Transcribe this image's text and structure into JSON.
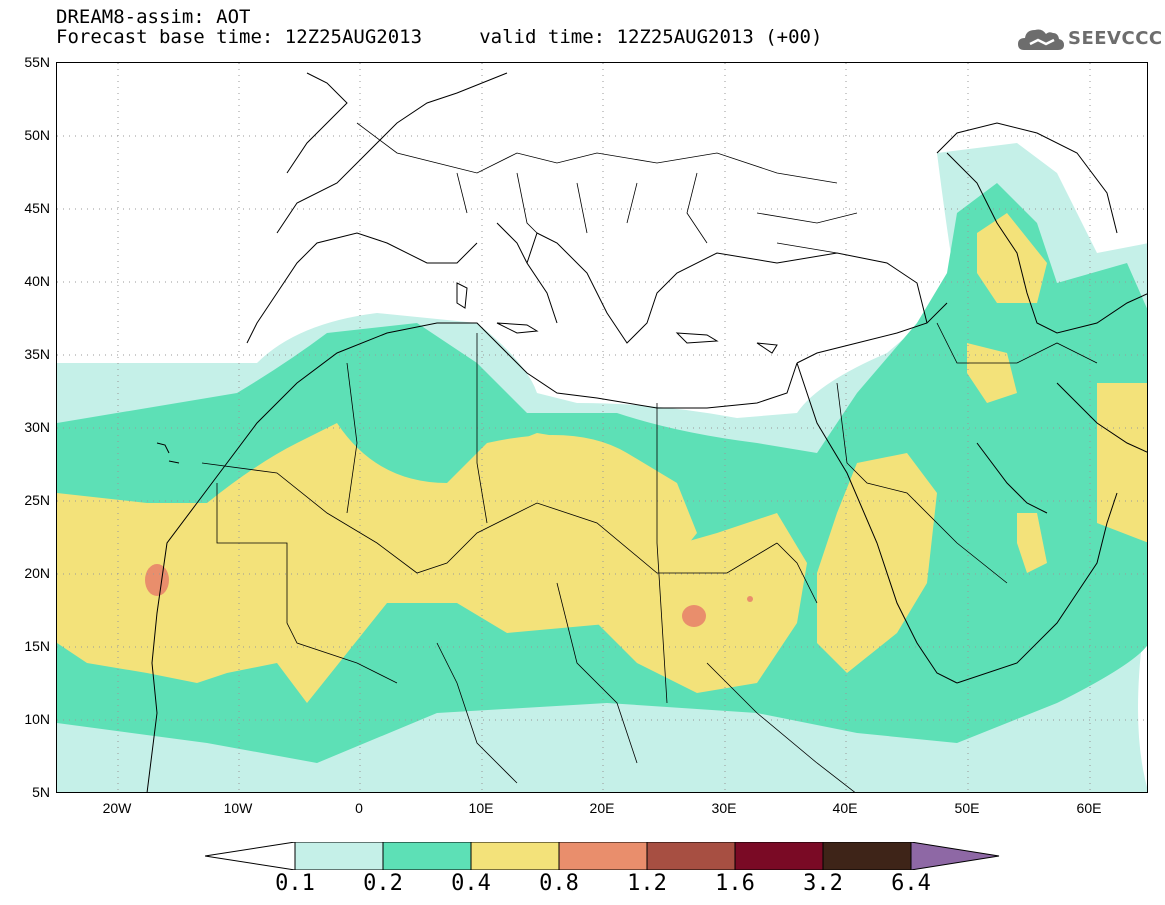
{
  "header": {
    "title": "DREAM8-assim: AOT",
    "subtitle": "Forecast base time: 12Z25AUG2013     valid time: 12Z25AUG2013 (+00)"
  },
  "logo": {
    "text": "SEEVCCC",
    "icon": "cloud-icon"
  },
  "map": {
    "lat_labels": [
      "55N",
      "50N",
      "45N",
      "40N",
      "35N",
      "30N",
      "25N",
      "20N",
      "15N",
      "10N",
      "5N"
    ],
    "lon_labels": [
      "20W",
      "10W",
      "0",
      "10E",
      "20E",
      "30E",
      "40E",
      "50E",
      "60E"
    ],
    "lat_range": [
      5,
      55
    ],
    "lon_range": [
      -25,
      65
    ],
    "gridlines": "dotted",
    "field": "aerosol optical thickness"
  },
  "colorbar": {
    "labels": [
      "0.1",
      "0.2",
      "0.4",
      "0.8",
      "1.2",
      "1.6",
      "3.2",
      "6.4"
    ],
    "colors": [
      "#c5f0e8",
      "#5de0b6",
      "#f3e27a",
      "#e98e6c",
      "#a74f42",
      "#7a0a25",
      "#3e2418",
      "#8e68a5"
    ],
    "below_color": "#ffffff"
  }
}
